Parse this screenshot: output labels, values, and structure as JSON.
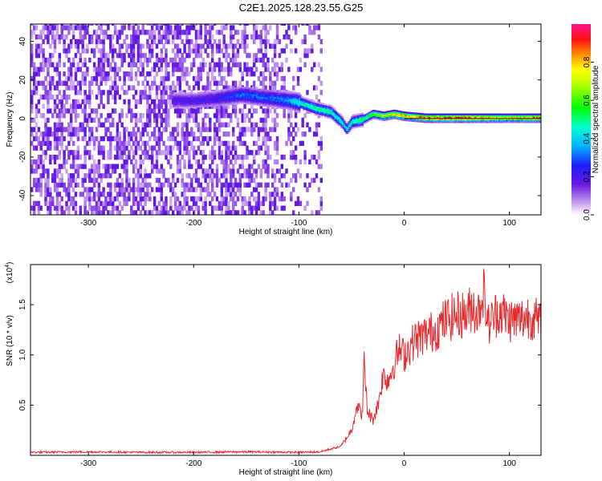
{
  "title": "C2E1.2025.128.23.55.G25",
  "chart_data": [
    {
      "type": "heatmap",
      "xlabel": "Height of straight line (km)",
      "ylabel": "Frequency (Hz)",
      "xlim": [
        -355,
        130
      ],
      "ylim": [
        -50,
        49
      ],
      "xticks": [
        -300,
        -200,
        -100,
        0,
        100
      ],
      "yticks": [
        -40,
        -20,
        0,
        20,
        40
      ],
      "colorbar": {
        "label": "Normalized spectral amplitude",
        "range": [
          0,
          1
        ],
        "ticks": [
          0.0,
          0.2,
          0.4,
          0.6,
          0.8
        ]
      },
      "ridge": {
        "height_km": [
          -220,
          -200,
          -180,
          -155,
          -140,
          -125,
          -110,
          -100,
          -85,
          -70,
          -60,
          -55,
          -50,
          -40,
          -30,
          -20,
          -10,
          0,
          20,
          60,
          100,
          130
        ],
        "frequency_hz": [
          9,
          9,
          10,
          12,
          11,
          10,
          9,
          8,
          5,
          3,
          -2,
          -6,
          -2,
          -1,
          2,
          1,
          2,
          1,
          0,
          0,
          0,
          0
        ],
        "amplitude": [
          0.2,
          0.2,
          0.22,
          0.3,
          0.3,
          0.3,
          0.35,
          0.45,
          0.5,
          0.5,
          0.45,
          0.4,
          0.5,
          0.55,
          0.6,
          0.7,
          0.75,
          0.8,
          0.9,
          0.9,
          0.75,
          0.85
        ]
      }
    },
    {
      "type": "line",
      "xlabel": "Height of straight line (km)",
      "ylabel": "SNR (10 * v/v)",
      "yscale_label": "(x10",
      "yscale_exp": "4",
      "ylabel_scale_factor": 10000,
      "xlim": [
        -355,
        130
      ],
      "ylim": [
        0,
        19000
      ],
      "xticks": [
        -300,
        -200,
        -100,
        0,
        100
      ],
      "yticks": [
        0.5,
        1.0,
        1.5
      ],
      "ytick_labels": [
        "0.5",
        "1.0",
        "1.5"
      ],
      "series": [
        {
          "name": "SNR",
          "color": "#e8292e",
          "x": [
            -355,
            -300,
            -250,
            -200,
            -150,
            -100,
            -80,
            -60,
            -50,
            -45,
            -40,
            -38,
            -35,
            -30,
            -25,
            -20,
            -15,
            -10,
            -5,
            0,
            10,
            20,
            30,
            40,
            50,
            60,
            65,
            70,
            75,
            80,
            90,
            100,
            110,
            120,
            130
          ],
          "y": [
            300,
            350,
            300,
            300,
            350,
            300,
            350,
            900,
            2500,
            5000,
            4000,
            9000,
            4500,
            3500,
            5000,
            8000,
            7500,
            9000,
            10500,
            10000,
            11500,
            12000,
            12500,
            13500,
            14000,
            14000,
            15000,
            14000,
            16500,
            13000,
            14500,
            13500,
            13500,
            14000,
            13000
          ]
        }
      ]
    }
  ]
}
